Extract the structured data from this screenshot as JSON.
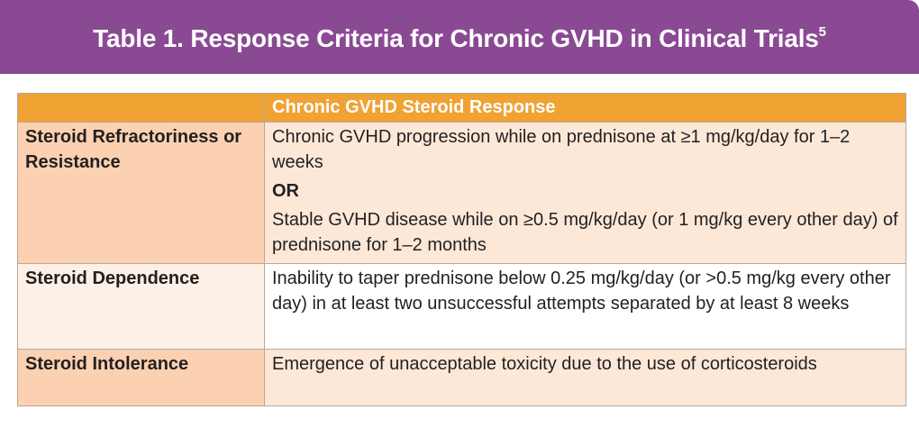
{
  "title": {
    "text": "Table 1. Response Criteria for Chronic GVHD in Clinical Trials",
    "superscript": "5"
  },
  "table": {
    "header": {
      "first": "",
      "second": "Chronic GVHD Steroid Response"
    },
    "rows": [
      {
        "label": "Steroid Refractoriness or Resistance",
        "text_1": "Chronic GVHD progression while on prednisone at ≥1 mg/kg/day for 1–2 weeks",
        "connector": "OR",
        "text_2": "Stable GVHD disease while on ≥0.5 mg/kg/day (or 1 mg/kg every other day) of prednisone for 1–2 months"
      },
      {
        "label": "Steroid Dependence",
        "text_1": "Inability to taper prednisone below 0.25 mg/kg/day (or >0.5 mg/kg every other day) in at least two unsuccessful attempts separated by at least 8 weeks"
      },
      {
        "label": "Steroid Intolerance",
        "text_1": "Emergence of unacceptable toxicity due to the use of corticosteroids"
      }
    ]
  },
  "colors": {
    "title_bar": "#8a4a93",
    "header_row": "#f0a233",
    "label_dark": "#fbd1b1",
    "cell_light": "#fde8d8"
  }
}
